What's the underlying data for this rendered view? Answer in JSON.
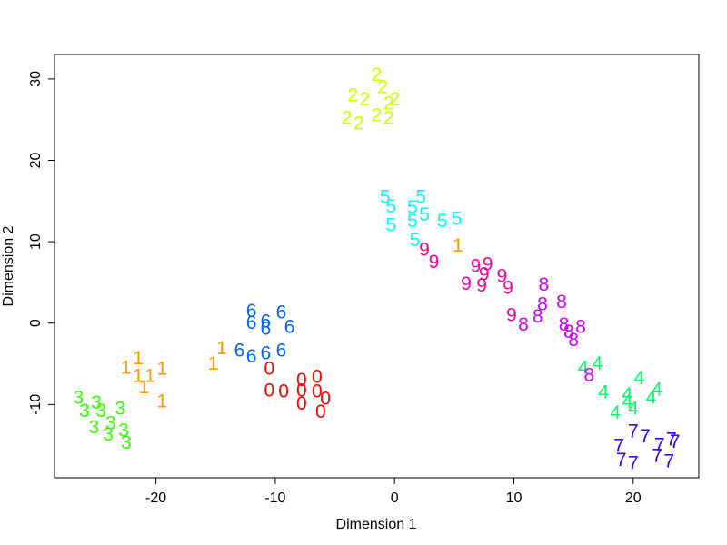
{
  "chart_data": {
    "type": "scatter",
    "title": "",
    "xlabel": "Dimension 1",
    "ylabel": "Dimension 2",
    "xlim": [
      -28.5,
      25.5
    ],
    "ylim": [
      -19,
      33
    ],
    "grid": false,
    "legend": "none",
    "x_ticks": [
      {
        "v": -20,
        "label": "-20"
      },
      {
        "v": -10,
        "label": "-10"
      },
      {
        "v": 0,
        "label": "0"
      },
      {
        "v": 10,
        "label": "10"
      },
      {
        "v": 20,
        "label": "20"
      }
    ],
    "y_ticks": [
      {
        "v": -10,
        "label": "-10"
      },
      {
        "v": 0,
        "label": "0"
      },
      {
        "v": 10,
        "label": "10"
      },
      {
        "v": 20,
        "label": "20"
      },
      {
        "v": 30,
        "label": "30"
      }
    ],
    "series": [
      {
        "label": "0",
        "color": "#ff0000",
        "points": [
          [
            -10.5,
            -5.6
          ],
          [
            -10.5,
            -8.3
          ],
          [
            -9.3,
            -8.4
          ],
          [
            -7.8,
            -7.0
          ],
          [
            -7.8,
            -8.3
          ],
          [
            -7.8,
            -9.9
          ],
          [
            -6.5,
            -6.6
          ],
          [
            -6.5,
            -8.4
          ],
          [
            -5.8,
            -9.3
          ],
          [
            -6.2,
            -10.9
          ]
        ]
      },
      {
        "label": "1",
        "color": "#ff9900",
        "points": [
          [
            -21.5,
            -4.3
          ],
          [
            -22.5,
            -5.5
          ],
          [
            -21.5,
            -6.5
          ],
          [
            -20.5,
            -6.5
          ],
          [
            -19.5,
            -5.6
          ],
          [
            -21.0,
            -7.9
          ],
          [
            -19.5,
            -9.6
          ],
          [
            -14.5,
            -3.1
          ],
          [
            -15.2,
            -5.0
          ],
          [
            5.3,
            9.5
          ]
        ]
      },
      {
        "label": "2",
        "color": "#ccff00",
        "points": [
          [
            -1.5,
            30.5
          ],
          [
            -1.0,
            29.0
          ],
          [
            -3.5,
            28.0
          ],
          [
            -2.5,
            27.5
          ],
          [
            -0.5,
            27.0
          ],
          [
            0.0,
            27.5
          ],
          [
            -1.5,
            25.5
          ],
          [
            -0.5,
            25.2
          ],
          [
            -4.0,
            25.2
          ],
          [
            -3.0,
            24.5
          ]
        ]
      },
      {
        "label": "3",
        "color": "#33ff00",
        "points": [
          [
            -26.5,
            -9.2
          ],
          [
            -25.0,
            -9.8
          ],
          [
            -26.0,
            -10.8
          ],
          [
            -24.6,
            -10.8
          ],
          [
            -23.0,
            -10.5
          ],
          [
            -25.2,
            -12.8
          ],
          [
            -23.8,
            -12.3
          ],
          [
            -24.0,
            -13.7
          ],
          [
            -22.7,
            -13.2
          ],
          [
            -22.5,
            -14.7
          ]
        ]
      },
      {
        "label": "4",
        "color": "#00ff66",
        "points": [
          [
            17.0,
            -5.0
          ],
          [
            15.8,
            -5.5
          ],
          [
            17.5,
            -8.5
          ],
          [
            18.5,
            -11.0
          ],
          [
            19.5,
            -9.7
          ],
          [
            20.0,
            -10.5
          ],
          [
            19.5,
            -8.8
          ],
          [
            20.5,
            -6.8
          ],
          [
            22.0,
            -8.2
          ],
          [
            21.5,
            -9.2
          ]
        ]
      },
      {
        "label": "5",
        "color": "#00ffff",
        "points": [
          [
            -0.8,
            15.5
          ],
          [
            -0.3,
            14.3
          ],
          [
            -0.3,
            12.0
          ],
          [
            1.5,
            14.2
          ],
          [
            2.2,
            15.5
          ],
          [
            1.5,
            12.5
          ],
          [
            2.5,
            13.3
          ],
          [
            4.0,
            12.5
          ],
          [
            5.2,
            12.8
          ],
          [
            1.7,
            10.2
          ]
        ]
      },
      {
        "label": "6",
        "color": "#0066ff",
        "points": [
          [
            -12.0,
            1.5
          ],
          [
            -9.5,
            1.3
          ],
          [
            -12.0,
            0.0
          ],
          [
            -10.8,
            0.2
          ],
          [
            -10.8,
            -0.7
          ],
          [
            -8.8,
            -0.5
          ],
          [
            -13.0,
            -3.4
          ],
          [
            -12.0,
            -4.1
          ],
          [
            -10.8,
            -3.7
          ],
          [
            -9.5,
            -3.4
          ]
        ]
      },
      {
        "label": "7",
        "color": "#3300ff",
        "points": [
          [
            20.0,
            -13.3
          ],
          [
            21.0,
            -13.9
          ],
          [
            18.8,
            -15.1
          ],
          [
            19.0,
            -16.8
          ],
          [
            20.0,
            -17.2
          ],
          [
            22.2,
            -15.0
          ],
          [
            22.0,
            -16.3
          ],
          [
            23.2,
            -14.3
          ],
          [
            23.5,
            -14.6
          ],
          [
            23.0,
            -17.0
          ]
        ]
      },
      {
        "label": "8",
        "color": "#cc00ff",
        "points": [
          [
            12.5,
            4.7
          ],
          [
            12.4,
            2.3
          ],
          [
            14.0,
            2.6
          ],
          [
            12.0,
            0.8
          ],
          [
            10.8,
            -0.2
          ],
          [
            14.2,
            -0.2
          ],
          [
            14.6,
            -1.1
          ],
          [
            15.6,
            -0.5
          ],
          [
            15.0,
            -2.1
          ],
          [
            16.3,
            -6.4
          ]
        ]
      },
      {
        "label": "9",
        "color": "#ff0099",
        "points": [
          [
            2.5,
            9.0
          ],
          [
            3.3,
            7.5
          ],
          [
            6.8,
            7.0
          ],
          [
            7.8,
            7.2
          ],
          [
            7.5,
            6.0
          ],
          [
            9.0,
            5.8
          ],
          [
            6.0,
            4.8
          ],
          [
            7.3,
            4.6
          ],
          [
            9.5,
            4.3
          ],
          [
            9.8,
            1.0
          ]
        ]
      }
    ]
  }
}
